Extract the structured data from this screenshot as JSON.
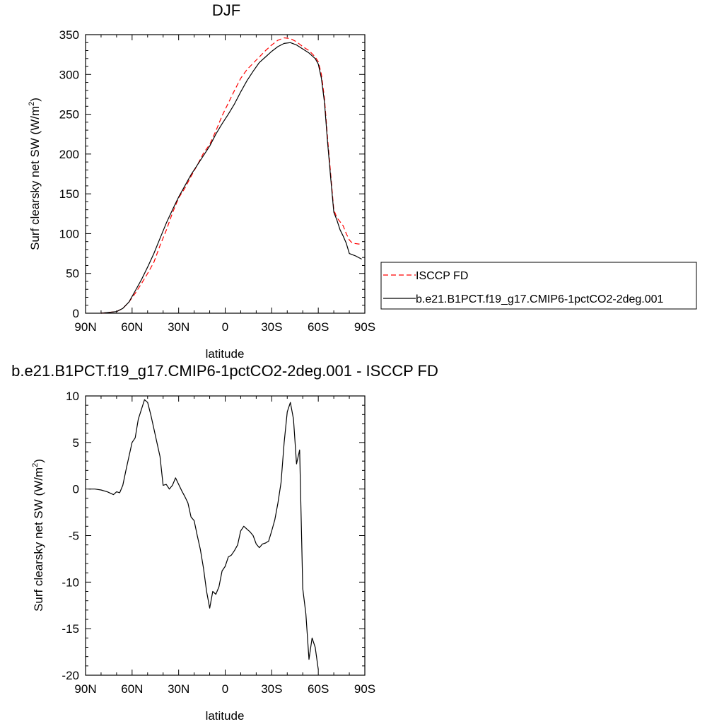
{
  "chart_data": [
    {
      "type": "line",
      "title": "DJF",
      "xlabel": "latitude",
      "ylabel": "Surf clearsky net SW (W/m",
      "ylabel_sup": "2",
      "ylabel_close": ")",
      "xlim": [
        90,
        -90
      ],
      "ylim": [
        0,
        350
      ],
      "x_tick_values": [
        90,
        60,
        30,
        0,
        -30,
        -60,
        -90
      ],
      "x_tick_labels": [
        "90N",
        "60N",
        "30N",
        "0",
        "30S",
        "60S",
        "90S"
      ],
      "y_tick_values": [
        0,
        50,
        100,
        150,
        200,
        250,
        300,
        350
      ],
      "y_tick_labels": [
        "0",
        "50",
        "100",
        "150",
        "200",
        "250",
        "300",
        "350"
      ],
      "legend_position": "right",
      "series": [
        {
          "name": "ISCCP FD",
          "color": "#ff0000",
          "dash": "dashed",
          "points": [
            [
              80,
              0
            ],
            [
              70,
              2
            ],
            [
              66,
              6
            ],
            [
              62,
              14
            ],
            [
              58,
              25
            ],
            [
              54,
              37
            ],
            [
              50,
              50
            ],
            [
              46,
              64
            ],
            [
              42,
              85
            ],
            [
              38,
              104
            ],
            [
              34,
              126
            ],
            [
              30,
              145
            ],
            [
              26,
              157
            ],
            [
              22,
              172
            ],
            [
              18,
              186
            ],
            [
              14,
              201
            ],
            [
              10,
              212
            ],
            [
              6,
              229
            ],
            [
              2,
              248
            ],
            [
              -2,
              264
            ],
            [
              -6,
              280
            ],
            [
              -10,
              295
            ],
            [
              -14,
              306
            ],
            [
              -18,
              314
            ],
            [
              -22,
              322
            ],
            [
              -26,
              330
            ],
            [
              -30,
              337
            ],
            [
              -34,
              343
            ],
            [
              -38,
              346
            ],
            [
              -42,
              345
            ],
            [
              -46,
              341
            ],
            [
              -50,
              335
            ],
            [
              -54,
              330
            ],
            [
              -58,
              322
            ],
            [
              -60,
              316
            ],
            [
              -62,
              300
            ],
            [
              -64,
              270
            ],
            [
              -66,
              220
            ],
            [
              -68,
              175
            ],
            [
              -70,
              130
            ],
            [
              -72,
              120
            ],
            [
              -74,
              115
            ],
            [
              -76,
              110
            ],
            [
              -78,
              100
            ],
            [
              -80,
              92
            ],
            [
              -82,
              88
            ],
            [
              -86,
              87
            ],
            [
              -88,
              87
            ]
          ]
        },
        {
          "name": "b.e21.B1PCT.f19_g17.CMIP6-1pctCO2-2deg.001",
          "color": "#000000",
          "dash": "solid",
          "points": [
            [
              80,
              0
            ],
            [
              70,
              2
            ],
            [
              66,
              6
            ],
            [
              62,
              14
            ],
            [
              58,
              28
            ],
            [
              54,
              42
            ],
            [
              50,
              58
            ],
            [
              46,
              75
            ],
            [
              42,
              94
            ],
            [
              38,
              113
            ],
            [
              34,
              130
            ],
            [
              30,
              146
            ],
            [
              26,
              160
            ],
            [
              22,
              174
            ],
            [
              18,
              186
            ],
            [
              14,
              198
            ],
            [
              10,
              210
            ],
            [
              6,
              225
            ],
            [
              2,
              238
            ],
            [
              -2,
              250
            ],
            [
              -6,
              263
            ],
            [
              -10,
              278
            ],
            [
              -14,
              292
            ],
            [
              -18,
              304
            ],
            [
              -22,
              315
            ],
            [
              -26,
              322
            ],
            [
              -30,
              329
            ],
            [
              -34,
              335
            ],
            [
              -38,
              339
            ],
            [
              -42,
              340
            ],
            [
              -46,
              337
            ],
            [
              -50,
              332
            ],
            [
              -54,
              327
            ],
            [
              -58,
              320
            ],
            [
              -60,
              313
            ],
            [
              -62,
              295
            ],
            [
              -64,
              265
            ],
            [
              -66,
              215
            ],
            [
              -68,
              170
            ],
            [
              -70,
              127
            ],
            [
              -72,
              117
            ],
            [
              -74,
              105
            ],
            [
              -76,
              97
            ],
            [
              -78,
              88
            ],
            [
              -80,
              75
            ],
            [
              -84,
              72
            ],
            [
              -88,
              68
            ]
          ]
        }
      ]
    },
    {
      "type": "line",
      "title": "b.e21.B1PCT.f19_g17.CMIP6-1pctCO2-2deg.001 - ISCCP FD",
      "xlabel": "latitude",
      "ylabel": "Surf clearsky net SW (W/m",
      "ylabel_sup": "2",
      "ylabel_close": ")",
      "xlim": [
        90,
        -90
      ],
      "ylim": [
        -20,
        10
      ],
      "x_tick_values": [
        90,
        60,
        30,
        0,
        -30,
        -60,
        -90
      ],
      "x_tick_labels": [
        "90N",
        "60N",
        "30N",
        "0",
        "30S",
        "60S",
        "90S"
      ],
      "y_tick_values": [
        10,
        5,
        0,
        -5,
        -10,
        -15,
        -20
      ],
      "y_tick_labels": [
        "10",
        "5",
        "0",
        "-5",
        "-10",
        "-15",
        "-20"
      ],
      "series": [
        {
          "color": "#000000",
          "dash": "solid",
          "points": [
            [
              88,
              0
            ],
            [
              84,
              0
            ],
            [
              80,
              -0.1
            ],
            [
              76,
              -0.3
            ],
            [
              72,
              -0.6
            ],
            [
              70,
              -0.3
            ],
            [
              68,
              -0.4
            ],
            [
              66,
              0.4
            ],
            [
              64,
              2
            ],
            [
              62,
              3.5
            ],
            [
              60,
              5
            ],
            [
              58,
              5.5
            ],
            [
              56,
              7.5
            ],
            [
              52,
              9.6
            ],
            [
              50,
              9.3
            ],
            [
              48,
              8
            ],
            [
              46,
              6.5
            ],
            [
              44,
              5
            ],
            [
              42,
              3.5
            ],
            [
              40,
              0.4
            ],
            [
              38,
              0.5
            ],
            [
              36,
              0
            ],
            [
              34,
              0.4
            ],
            [
              32,
              1.2
            ],
            [
              30,
              0.5
            ],
            [
              28,
              -0.2
            ],
            [
              26,
              -0.8
            ],
            [
              24,
              -1.5
            ],
            [
              22,
              -3
            ],
            [
              20,
              -3.4
            ],
            [
              18,
              -5
            ],
            [
              16,
              -6.5
            ],
            [
              14,
              -8.5
            ],
            [
              12,
              -11
            ],
            [
              10,
              -12.8
            ],
            [
              8,
              -11
            ],
            [
              6,
              -11.3
            ],
            [
              4,
              -10.5
            ],
            [
              2,
              -8.8
            ],
            [
              0,
              -8.3
            ],
            [
              -2,
              -7.3
            ],
            [
              -4,
              -7.1
            ],
            [
              -6,
              -6.6
            ],
            [
              -8,
              -6
            ],
            [
              -10,
              -4.5
            ],
            [
              -12,
              -4
            ],
            [
              -14,
              -4.3
            ],
            [
              -16,
              -4.6
            ],
            [
              -18,
              -5
            ],
            [
              -20,
              -5.9
            ],
            [
              -22,
              -6.3
            ],
            [
              -24,
              -5.9
            ],
            [
              -26,
              -5.8
            ],
            [
              -28,
              -5.6
            ],
            [
              -30,
              -4.5
            ],
            [
              -32,
              -3.3
            ],
            [
              -34,
              -1.5
            ],
            [
              -36,
              0.7
            ],
            [
              -38,
              5
            ],
            [
              -40,
              8.3
            ],
            [
              -42,
              9.3
            ],
            [
              -44,
              7.5
            ],
            [
              -46,
              2.7
            ],
            [
              -48,
              4.2
            ],
            [
              -50,
              -10.7
            ],
            [
              -52,
              -13.4
            ],
            [
              -54,
              -18.3
            ],
            [
              -56,
              -16
            ],
            [
              -58,
              -17
            ],
            [
              -60,
              -19.4
            ]
          ]
        }
      ]
    }
  ]
}
